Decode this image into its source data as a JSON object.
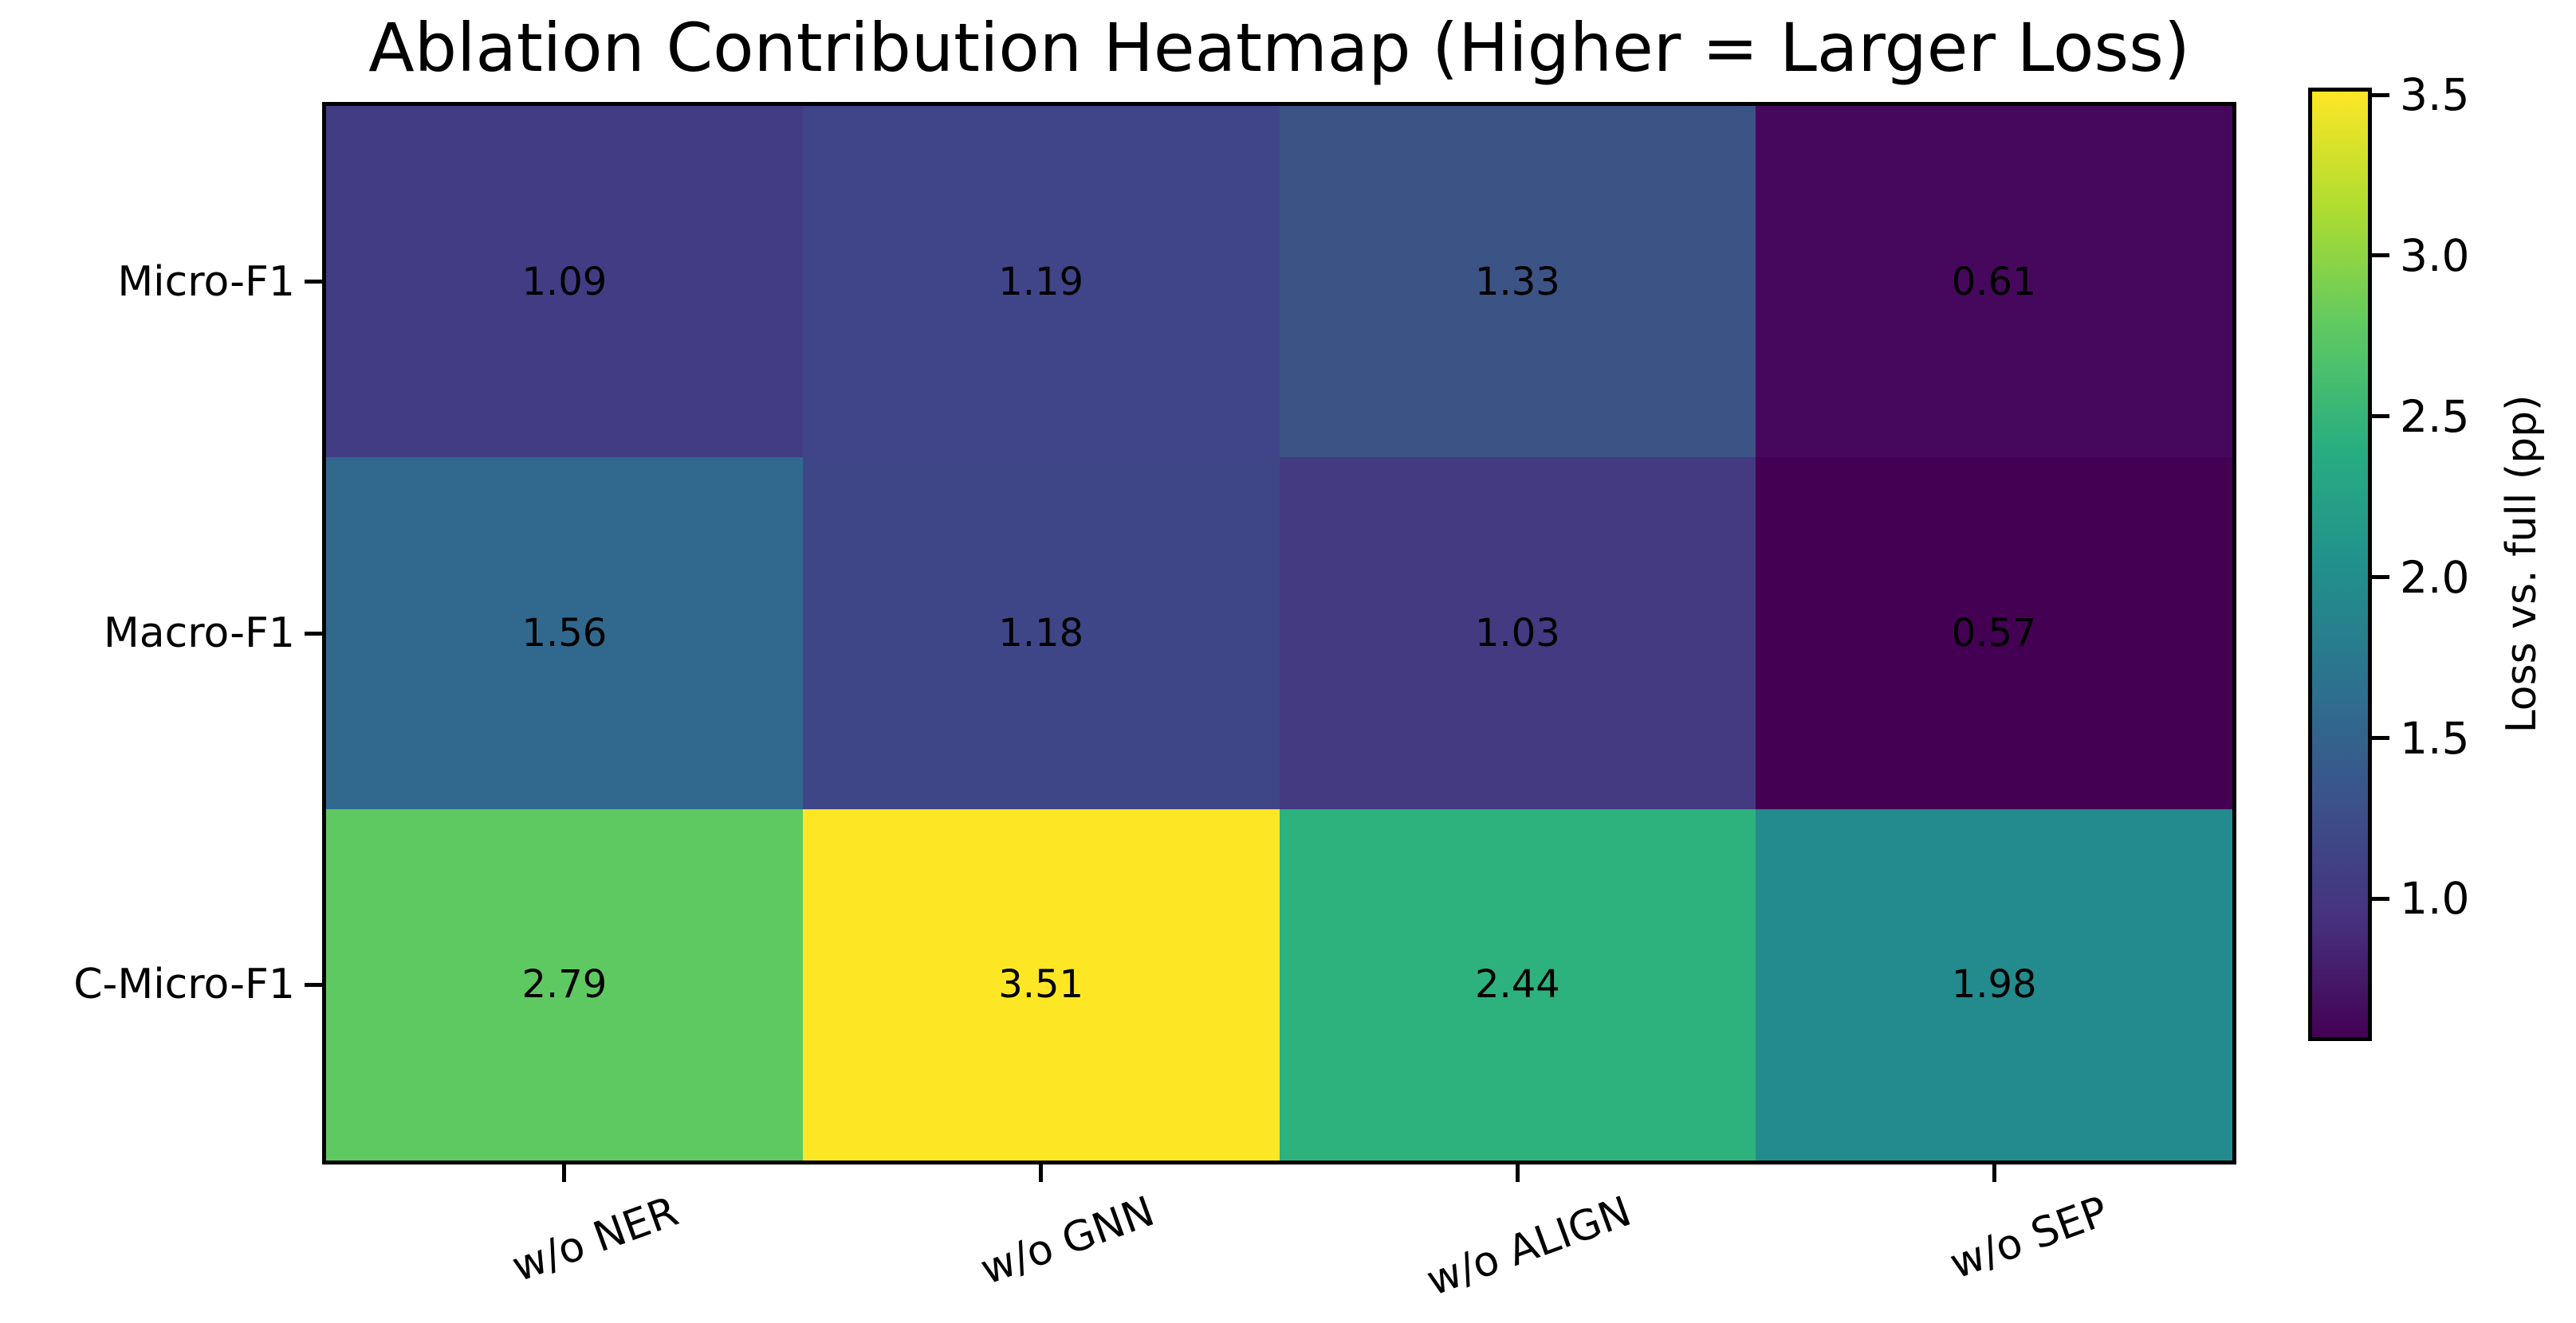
{
  "chart_data": {
    "type": "heatmap",
    "title": "Ablation Contribution Heatmap (Higher = Larger Loss)",
    "x_categories": [
      "w/o NER",
      "w/o GNN",
      "w/o ALIGN",
      "w/o SEP"
    ],
    "y_categories": [
      "Micro-F1",
      "Macro-F1",
      "C-Micro-F1"
    ],
    "series": [
      {
        "name": "Micro-F1",
        "values": [
          1.09,
          1.19,
          1.33,
          0.61
        ]
      },
      {
        "name": "Macro-F1",
        "values": [
          1.56,
          1.18,
          1.03,
          0.57
        ]
      },
      {
        "name": "C-Micro-F1",
        "values": [
          2.79,
          3.51,
          2.44,
          1.98
        ]
      }
    ],
    "cell_colors": [
      [
        "#423c84",
        "#404589",
        "#3c5386",
        "#46085c"
      ],
      [
        "#31688e",
        "#3f4687",
        "#433a81",
        "#440154"
      ],
      [
        "#5fc961",
        "#fde725",
        "#2db27d",
        "#238a8d"
      ]
    ],
    "cell_text_color": "#000000",
    "value_decimals": 2,
    "x_tick_rotation_deg": 20,
    "grid": false,
    "axis_color": "#000000",
    "colorbar": {
      "label": "Loss vs. full (pp)",
      "tick_labels": [
        "3.5",
        "3.0",
        "2.5",
        "2.0",
        "1.5",
        "1.0"
      ],
      "tick_values": [
        3.5,
        3.0,
        2.5,
        2.0,
        1.5,
        1.0
      ],
      "vmin": 0.57,
      "vmax": 3.51,
      "colormap": "viridis",
      "gradient_stops": [
        "#440154",
        "#46327e",
        "#3b528b",
        "#2c728e",
        "#21918c",
        "#28ae80",
        "#5ec962",
        "#addc30",
        "#fde725"
      ]
    }
  }
}
